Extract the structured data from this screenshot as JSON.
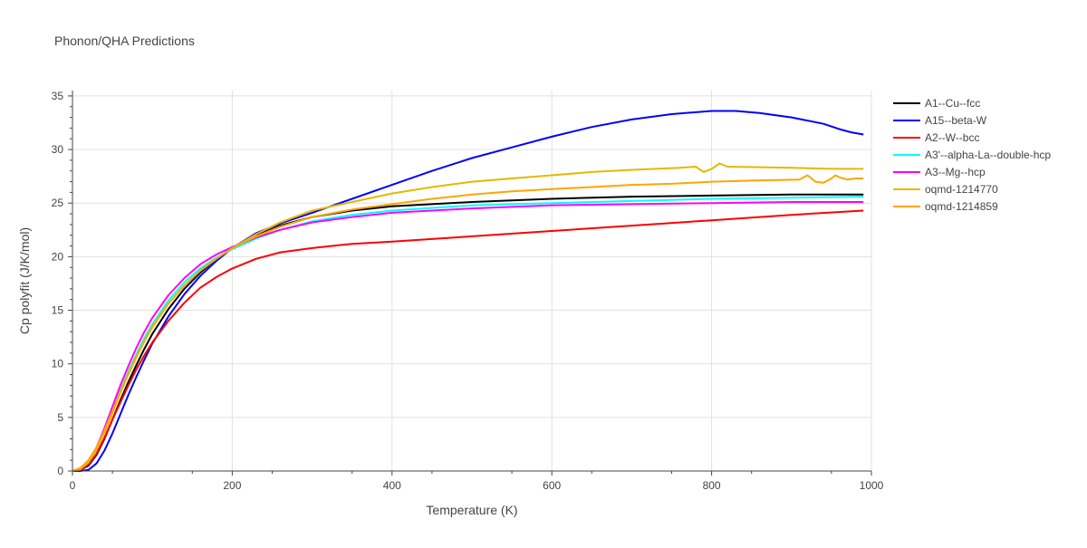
{
  "chart_data": {
    "type": "line",
    "title": "Phonon/QHA Predictions",
    "xlabel": "Temperature (K)",
    "ylabel": "Cp polyfit (J/K/mol)",
    "xlim": [
      0,
      1000
    ],
    "ylim": [
      0,
      35.5
    ],
    "xticks": [
      0,
      200,
      400,
      600,
      800,
      1000
    ],
    "yticks": [
      0,
      5,
      10,
      15,
      20,
      25,
      30,
      35
    ],
    "grid": true,
    "legend_position": "top-right",
    "series": [
      {
        "name": "A1--Cu--fcc",
        "color": "#000000",
        "x": [
          0,
          10,
          20,
          30,
          40,
          50,
          60,
          70,
          80,
          90,
          100,
          120,
          140,
          160,
          180,
          200,
          230,
          260,
          300,
          350,
          400,
          500,
          600,
          700,
          800,
          900,
          990
        ],
        "y": [
          0,
          0.1,
          0.5,
          1.5,
          3.0,
          4.8,
          6.6,
          8.3,
          9.9,
          11.4,
          12.8,
          15.1,
          17.0,
          18.5,
          19.8,
          20.8,
          22.0,
          22.9,
          23.7,
          24.3,
          24.7,
          25.1,
          25.4,
          25.6,
          25.7,
          25.8,
          25.8
        ]
      },
      {
        "name": "A15--beta-W",
        "color": "#0000ff",
        "x": [
          0,
          10,
          20,
          30,
          40,
          50,
          60,
          70,
          80,
          90,
          100,
          120,
          140,
          160,
          180,
          200,
          230,
          260,
          300,
          350,
          400,
          450,
          500,
          550,
          600,
          650,
          700,
          750,
          800,
          830,
          860,
          900,
          940,
          960,
          975,
          990
        ],
        "y": [
          0,
          0,
          0.1,
          0.7,
          1.9,
          3.5,
          5.3,
          7.1,
          8.8,
          10.4,
          11.9,
          14.4,
          16.5,
          18.2,
          19.6,
          20.8,
          22.2,
          23.1,
          24.1,
          25.4,
          26.7,
          28.0,
          29.2,
          30.2,
          31.2,
          32.1,
          32.8,
          33.3,
          33.6,
          33.6,
          33.4,
          33.0,
          32.4,
          31.9,
          31.6,
          31.4
        ]
      },
      {
        "name": "A2--W--bcc",
        "color": "#ff0000",
        "x": [
          0,
          10,
          20,
          30,
          40,
          50,
          60,
          70,
          80,
          90,
          100,
          120,
          140,
          160,
          180,
          200,
          230,
          260,
          300,
          350,
          400,
          500,
          600,
          700,
          800,
          900,
          990
        ],
        "y": [
          0,
          0.1,
          0.6,
          1.6,
          3.1,
          4.8,
          6.4,
          8.0,
          9.5,
          10.8,
          12.0,
          14.0,
          15.7,
          17.1,
          18.1,
          18.9,
          19.8,
          20.4,
          20.8,
          21.2,
          21.4,
          21.9,
          22.4,
          22.9,
          23.4,
          23.9,
          24.3
        ]
      },
      {
        "name": "A3'--alpha-La--double-hcp",
        "color": "#00ffff",
        "x": [
          0,
          10,
          20,
          30,
          40,
          50,
          60,
          70,
          80,
          90,
          100,
          120,
          140,
          160,
          180,
          200,
          230,
          260,
          300,
          350,
          400,
          500,
          600,
          700,
          800,
          900,
          990
        ],
        "y": [
          0,
          0.2,
          0.8,
          2.0,
          3.7,
          5.6,
          7.5,
          9.3,
          10.9,
          12.4,
          13.7,
          15.9,
          17.6,
          18.9,
          19.9,
          20.7,
          21.7,
          22.5,
          23.3,
          23.9,
          24.3,
          24.8,
          25.0,
          25.2,
          25.4,
          25.5,
          25.6
        ]
      },
      {
        "name": "A3--Mg--hcp",
        "color": "#ff00ff",
        "x": [
          0,
          10,
          20,
          30,
          40,
          50,
          60,
          70,
          80,
          90,
          100,
          120,
          140,
          160,
          180,
          200,
          230,
          260,
          300,
          350,
          400,
          500,
          600,
          700,
          800,
          900,
          990
        ],
        "y": [
          0,
          0.2,
          0.9,
          2.2,
          4.0,
          6.0,
          8.0,
          9.8,
          11.5,
          13.0,
          14.3,
          16.4,
          18.0,
          19.3,
          20.2,
          20.9,
          21.8,
          22.5,
          23.2,
          23.7,
          24.1,
          24.5,
          24.8,
          24.9,
          25.0,
          25.1,
          25.1
        ]
      },
      {
        "name": "oqmd-1214770",
        "color": "#e6b800",
        "x": [
          0,
          10,
          20,
          30,
          40,
          50,
          60,
          70,
          80,
          90,
          100,
          120,
          140,
          160,
          180,
          200,
          230,
          260,
          300,
          350,
          400,
          450,
          500,
          550,
          600,
          650,
          700,
          760,
          780,
          790,
          800,
          810,
          820,
          900,
          950,
          990
        ],
        "y": [
          0,
          0.2,
          0.8,
          2.0,
          3.6,
          5.4,
          7.3,
          9.0,
          10.6,
          12.1,
          13.4,
          15.6,
          17.3,
          18.7,
          19.8,
          20.8,
          22.1,
          23.2,
          24.3,
          25.1,
          25.9,
          26.5,
          27.0,
          27.3,
          27.6,
          27.9,
          28.1,
          28.3,
          28.4,
          27.9,
          28.2,
          28.7,
          28.4,
          28.3,
          28.2,
          28.2
        ]
      },
      {
        "name": "oqmd-1214859",
        "color": "#ffa500",
        "x": [
          0,
          10,
          20,
          30,
          40,
          50,
          60,
          70,
          80,
          90,
          100,
          120,
          140,
          160,
          180,
          200,
          230,
          260,
          300,
          350,
          400,
          450,
          500,
          550,
          600,
          650,
          700,
          750,
          800,
          850,
          910,
          920,
          930,
          940,
          950,
          955,
          960,
          970,
          980,
          990
        ],
        "y": [
          0,
          0.3,
          1.0,
          2.2,
          3.8,
          5.6,
          7.4,
          9.1,
          10.7,
          12.1,
          13.5,
          15.6,
          17.3,
          18.7,
          19.8,
          20.8,
          21.9,
          22.8,
          23.7,
          24.4,
          24.9,
          25.4,
          25.8,
          26.1,
          26.3,
          26.5,
          26.7,
          26.8,
          27.0,
          27.1,
          27.2,
          27.6,
          27.0,
          26.9,
          27.3,
          27.6,
          27.4,
          27.2,
          27.3,
          27.3
        ]
      }
    ]
  }
}
